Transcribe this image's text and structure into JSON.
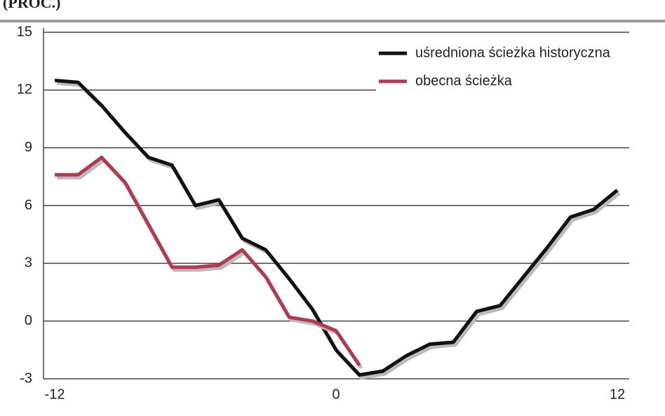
{
  "chart_data": {
    "type": "line",
    "title": "(PROC.)",
    "x": [
      -12,
      -11,
      -10,
      -9,
      -8,
      -7,
      -6,
      -5,
      -4,
      -3,
      -2,
      -1,
      0,
      1,
      2,
      3,
      4,
      5,
      6,
      7,
      8,
      9,
      10,
      11,
      12
    ],
    "series": [
      {
        "name": "uśredniona ścieżka historyczna",
        "color": "#111111",
        "values": [
          12.5,
          12.4,
          11.2,
          9.8,
          8.5,
          8.1,
          6.0,
          6.3,
          4.3,
          3.7,
          2.2,
          0.6,
          -1.5,
          -2.8,
          -2.6,
          -1.8,
          -1.2,
          -1.1,
          0.5,
          0.8,
          2.3,
          3.8,
          5.4,
          5.8,
          6.8
        ]
      },
      {
        "name": "obecna ścieżka",
        "color": "#b03a50",
        "values": [
          7.6,
          7.6,
          8.5,
          7.2,
          5.0,
          2.8,
          2.8,
          2.9,
          3.7,
          2.3,
          0.2,
          0.0,
          -0.5,
          -2.3,
          null,
          null,
          null,
          null,
          null,
          null,
          null,
          null,
          null,
          null,
          null
        ]
      }
    ],
    "xlim": [
      -12,
      12
    ],
    "xticks": [
      -12,
      0,
      12
    ],
    "ylim": [
      -3,
      15
    ],
    "yticks": [
      -3,
      0,
      3,
      6,
      9,
      12,
      15
    ],
    "grid": true,
    "legend": "top-right"
  }
}
